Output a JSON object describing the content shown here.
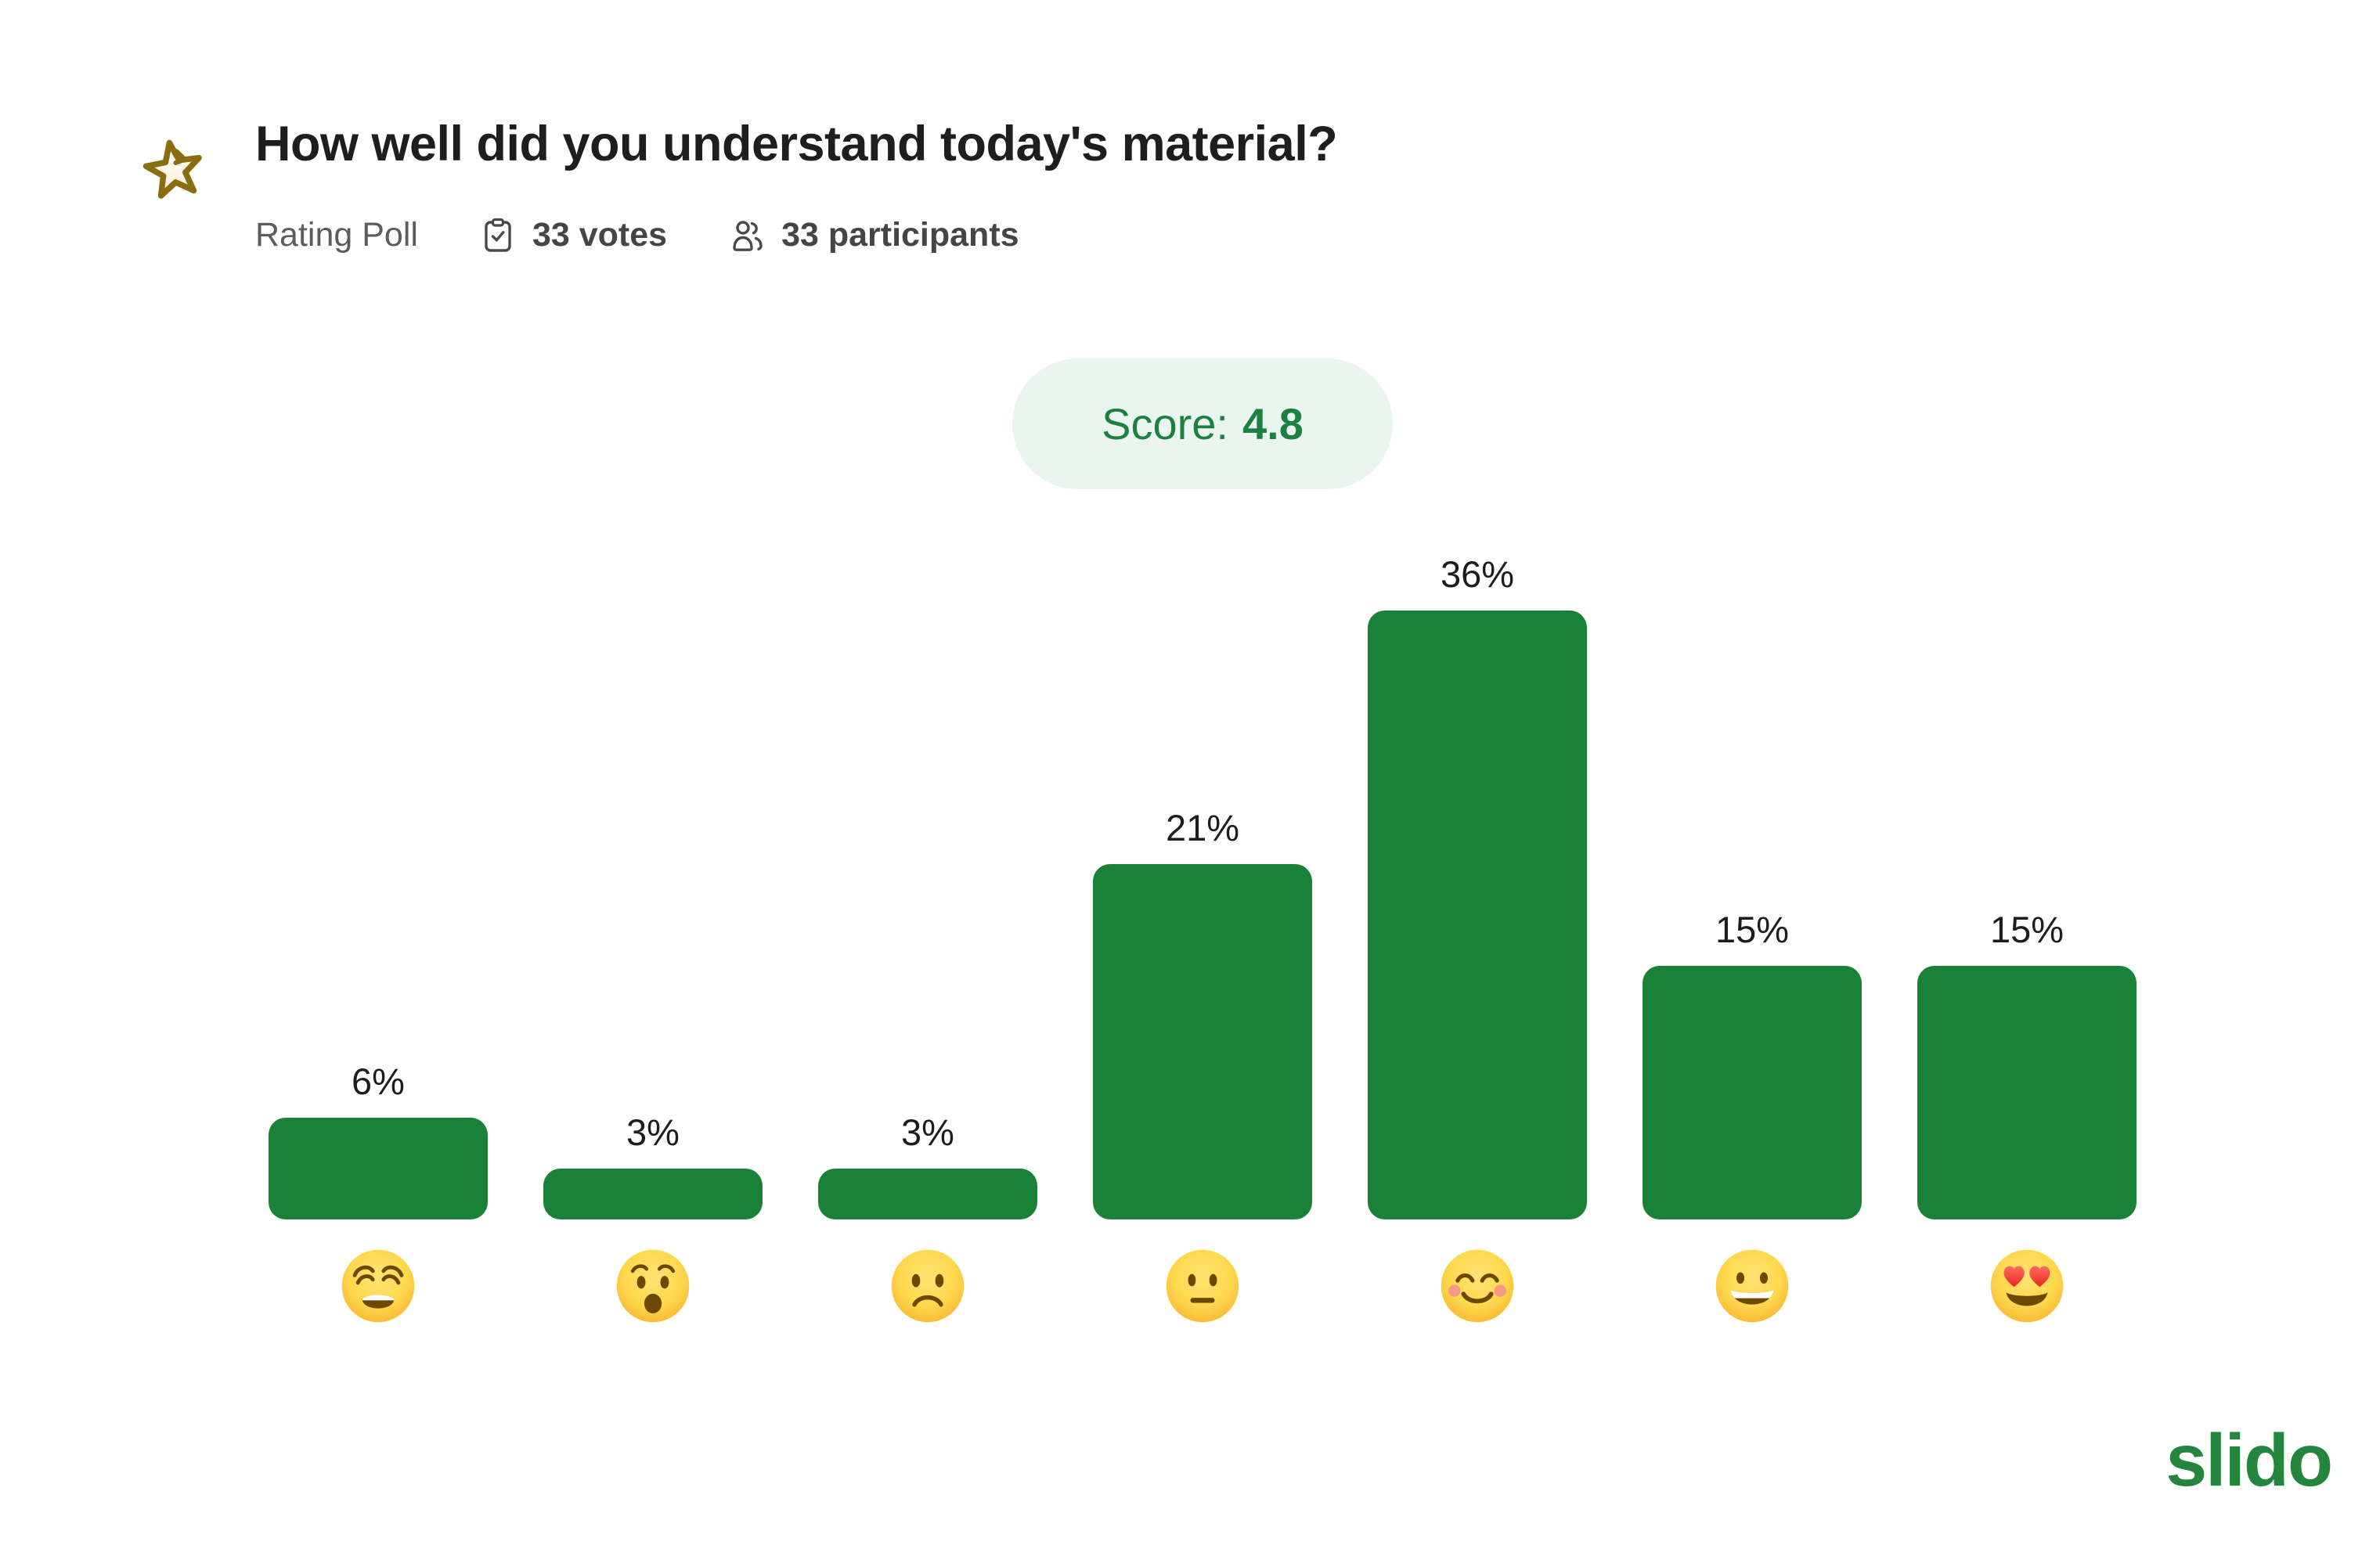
{
  "header": {
    "icon": "rating-star-icon",
    "title": "How well did you understand today's material?",
    "poll_type": "Rating Poll",
    "votes_icon": "clipboard-check-icon",
    "votes": "33 votes",
    "participants_icon": "participants-icon",
    "participants": "33 participants"
  },
  "score_badge": {
    "label": "Score:",
    "value": "4.8"
  },
  "chart_data": {
    "type": "bar",
    "title": "How well did you understand today's material?",
    "categories": [
      "weary-face",
      "anguished-face",
      "frowning-face",
      "neutral-face",
      "smiling-face-smiling-eyes",
      "grinning-face",
      "heart-eyes-face"
    ],
    "category_emojis": [
      "😩",
      "😧",
      "☹️",
      "😐",
      "😊",
      "😀",
      "😍"
    ],
    "values": [
      6,
      3,
      3,
      21,
      36,
      15,
      15
    ],
    "labels": [
      "6%",
      "3%",
      "3%",
      "21%",
      "36%",
      "15%",
      "15%"
    ],
    "unit": "%",
    "ymax": 36,
    "score": 4.8,
    "bar_color": "#1a8138",
    "grid": false,
    "legend": false
  },
  "footer": {
    "logo": "slido",
    "logo_color": "#23863c"
  },
  "colors": {
    "background": "#ffffff",
    "bar_green": "#1a8138",
    "pill_background": "#e9f5ee",
    "pill_text": "#1b8040",
    "title_text": "#1e1e1e",
    "meta_text": "#5c5c5c",
    "icon_stroke": "#4a4a4a",
    "star_stroke": "#8a6c12"
  }
}
